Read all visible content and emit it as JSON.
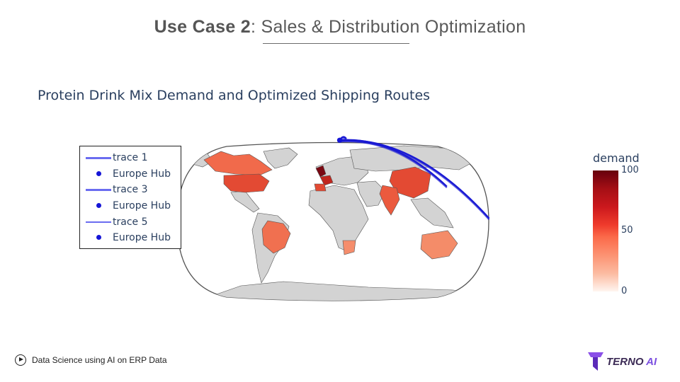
{
  "slide": {
    "title_bold": "Use Case 2",
    "title_rest": ": Sales & Distribution Optimization"
  },
  "chart_data": {
    "type": "choropleth-map",
    "title": "Protein Drink Mix Demand and Optimized Shipping Routes",
    "projection": "natural earth",
    "colorscale": "Reds",
    "colorbar": {
      "title": "demand",
      "range": [
        0,
        100
      ],
      "ticks": [
        "100",
        "50",
        "0"
      ]
    },
    "legend": {
      "placement": "left",
      "entries": [
        {
          "label": "trace 1",
          "kind": "line",
          "color": "#6a6cf0"
        },
        {
          "label": "Europe Hub",
          "kind": "marker",
          "color": "#1515d6"
        },
        {
          "label": "trace 3",
          "kind": "line",
          "color": "#6a6cf0"
        },
        {
          "label": "Europe Hub",
          "kind": "marker",
          "color": "#1515d6"
        },
        {
          "label": "trace 5",
          "kind": "line",
          "color": "#6a6cf0"
        },
        {
          "label": "Europe Hub",
          "kind": "marker",
          "color": "#1515d6"
        }
      ]
    },
    "demand": [
      {
        "region": "Canada",
        "value": 55
      },
      {
        "region": "United States",
        "value": 65
      },
      {
        "region": "Brazil",
        "value": 55
      },
      {
        "region": "United Kingdom",
        "value": 100
      },
      {
        "region": "France",
        "value": 75
      },
      {
        "region": "Spain",
        "value": 60
      },
      {
        "region": "China",
        "value": 65
      },
      {
        "region": "India",
        "value": 60
      },
      {
        "region": "South Africa",
        "value": 45
      },
      {
        "region": "Australia",
        "value": 40
      }
    ],
    "routes": [
      {
        "from": "Europe Hub",
        "from_lonlat": [
          5,
          51
        ],
        "to_lonlat": [
          10,
          52
        ]
      },
      {
        "from": "Europe Hub",
        "from_lonlat": [
          5,
          51
        ],
        "to_lonlat": [
          78,
          22
        ]
      },
      {
        "from": "Europe Hub",
        "from_lonlat": [
          5,
          51
        ],
        "to_lonlat": [
          105,
          2
        ]
      }
    ]
  },
  "footer": {
    "label": "Data Science using AI on ERP Data"
  },
  "brand": {
    "name": "TERNO",
    "suffix": "AI"
  }
}
